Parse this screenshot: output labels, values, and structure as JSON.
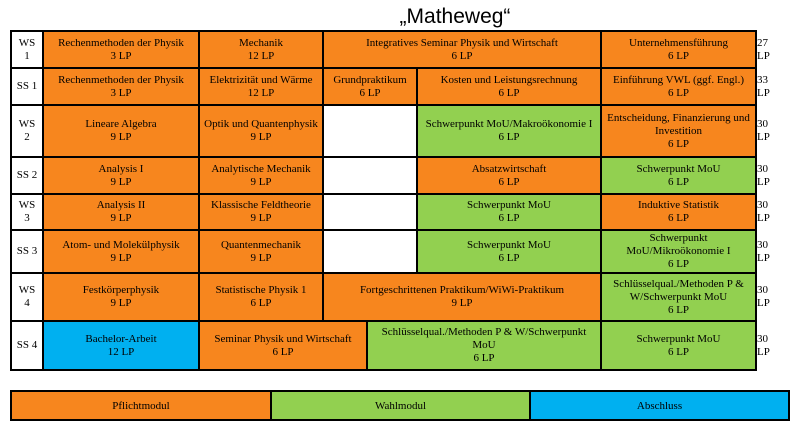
{
  "title": "„Matheweg“",
  "colors": {
    "pflicht": "#f7861e",
    "wahl": "#92d050",
    "abschluss": "#00b0f0",
    "empty": "#ffffff"
  },
  "rows": [
    {
      "sem": "WS 1",
      "total": "27 LP",
      "cells": [
        {
          "name": "Rechenmethoden der Physik",
          "lp": "3 LP",
          "type": "pflicht",
          "col": 0,
          "span": 2
        },
        {
          "name": "Mechanik",
          "lp": "12 LP",
          "type": "pflicht",
          "col": 2,
          "span": 2
        },
        {
          "name": "Integratives Seminar Physik und Wirtschaft",
          "lp": "6 LP",
          "type": "pflicht",
          "col": 4,
          "span": 5
        },
        {
          "name": "Unternehmensführung",
          "lp": "6 LP",
          "type": "pflicht",
          "col": 9,
          "span": 3
        }
      ]
    },
    {
      "sem": "SS 1",
      "total": "33 LP",
      "cells": [
        {
          "name": "Rechenmethoden der Physik",
          "lp": "3 LP",
          "type": "pflicht",
          "col": 0,
          "span": 2
        },
        {
          "name": "Elektrizität und Wärme",
          "lp": "12 LP",
          "type": "pflicht",
          "col": 2,
          "span": 2
        },
        {
          "name": "Grundpraktikum",
          "lp": "6 LP",
          "type": "pflicht",
          "col": 4,
          "span": 2
        },
        {
          "name": "Kosten und Leistungsrechnung",
          "lp": "6 LP",
          "type": "pflicht",
          "col": 6,
          "span": 3
        },
        {
          "name": "Einführung VWL (ggf. Engl.)",
          "lp": "6 LP",
          "type": "pflicht",
          "col": 9,
          "span": 3
        }
      ]
    },
    {
      "sem": "WS 2",
      "total": "30 LP",
      "cells": [
        {
          "name": "Lineare Algebra",
          "lp": "9 LP",
          "type": "pflicht",
          "col": 0,
          "span": 2
        },
        {
          "name": "Optik und Quantenphysik",
          "lp": "9 LP",
          "type": "pflicht",
          "col": 2,
          "span": 2
        },
        {
          "name": "",
          "lp": "",
          "type": "empty",
          "col": 4,
          "span": 2
        },
        {
          "name": "Schwerpunkt MoU/Makroökonomie I",
          "lp": "6 LP",
          "type": "wahl",
          "col": 6,
          "span": 3
        },
        {
          "name": "Entscheidung, Finanzierung und Investition",
          "lp": "6 LP",
          "type": "pflicht",
          "col": 9,
          "span": 3
        }
      ]
    },
    {
      "sem": "SS 2",
      "total": "30 LP",
      "cells": [
        {
          "name": "Analysis I",
          "lp": "9 LP",
          "type": "pflicht",
          "col": 0,
          "span": 2
        },
        {
          "name": "Analytische Mechanik",
          "lp": "9 LP",
          "type": "pflicht",
          "col": 2,
          "span": 2
        },
        {
          "name": "",
          "lp": "",
          "type": "empty",
          "col": 4,
          "span": 2
        },
        {
          "name": "Absatzwirtschaft",
          "lp": "6 LP",
          "type": "pflicht",
          "col": 6,
          "span": 3
        },
        {
          "name": "Schwerpunkt MoU",
          "lp": "6 LP",
          "type": "wahl",
          "col": 9,
          "span": 3
        }
      ]
    },
    {
      "sem": "WS 3",
      "total": "30 LP",
      "cells": [
        {
          "name": "Analysis II",
          "lp": "9 LP",
          "type": "pflicht",
          "col": 0,
          "span": 2
        },
        {
          "name": "Klassische Feldtheorie",
          "lp": "9 LP",
          "type": "pflicht",
          "col": 2,
          "span": 2
        },
        {
          "name": "",
          "lp": "",
          "type": "empty",
          "col": 4,
          "span": 2
        },
        {
          "name": "Schwerpunkt MoU",
          "lp": "6 LP",
          "type": "wahl",
          "col": 6,
          "span": 3
        },
        {
          "name": "Induktive Statistik",
          "lp": "6 LP",
          "type": "pflicht",
          "col": 9,
          "span": 3
        }
      ]
    },
    {
      "sem": "SS 3",
      "total": "30 LP",
      "cells": [
        {
          "name": "Atom- und Molekülphysik",
          "lp": "9 LP",
          "type": "pflicht",
          "col": 0,
          "span": 2
        },
        {
          "name": "Quantenmechanik",
          "lp": "9 LP",
          "type": "pflicht",
          "col": 2,
          "span": 2
        },
        {
          "name": "",
          "lp": "",
          "type": "empty",
          "col": 4,
          "span": 2
        },
        {
          "name": "Schwerpunkt MoU",
          "lp": "6 LP",
          "type": "wahl",
          "col": 6,
          "span": 3
        },
        {
          "name": "Schwerpunkt MoU/Mikroökonomie I",
          "lp": "6 LP",
          "type": "wahl",
          "col": 9,
          "span": 3
        }
      ]
    },
    {
      "sem": "WS 4",
      "total": "30 LP",
      "cells": [
        {
          "name": "Festkörperphysik",
          "lp": "9 LP",
          "type": "pflicht",
          "col": 0,
          "span": 2
        },
        {
          "name": "Statistische Physik 1",
          "lp": "6 LP",
          "type": "pflicht",
          "col": 2,
          "span": 2
        },
        {
          "name": "Fortgeschrittenen Praktikum/WiWi-Praktikum",
          "lp": "9 LP",
          "type": "pflicht",
          "col": 4,
          "span": 5
        },
        {
          "name": "Schlüsselqual./Methoden P & W/Schwerpunkt MoU",
          "lp": "6 LP",
          "type": "wahl",
          "col": 9,
          "span": 3
        }
      ]
    },
    {
      "sem": "SS 4",
      "total": "30 LP",
      "cells": [
        {
          "name": "Bachelor-Arbeit",
          "lp": "12 LP",
          "type": "abschluss",
          "col": 0,
          "span": 2
        },
        {
          "name": "Seminar Physik und Wirtschaft",
          "lp": "6 LP",
          "type": "pflicht",
          "col": 2,
          "span": 3
        },
        {
          "name": "Schlüsselqual./Methoden P & W/Schwerpunkt MoU",
          "lp": "6 LP",
          "type": "wahl",
          "col": 5,
          "span": 4
        },
        {
          "name": "Schwerpunkt MoU",
          "lp": "6 LP",
          "type": "wahl",
          "col": 9,
          "span": 3
        }
      ]
    }
  ],
  "legend": [
    {
      "label": "Pflichtmodul",
      "type": "pflicht"
    },
    {
      "label": "Wahlmodul",
      "type": "wahl"
    },
    {
      "label": "Abschluss",
      "type": "abschluss"
    }
  ]
}
